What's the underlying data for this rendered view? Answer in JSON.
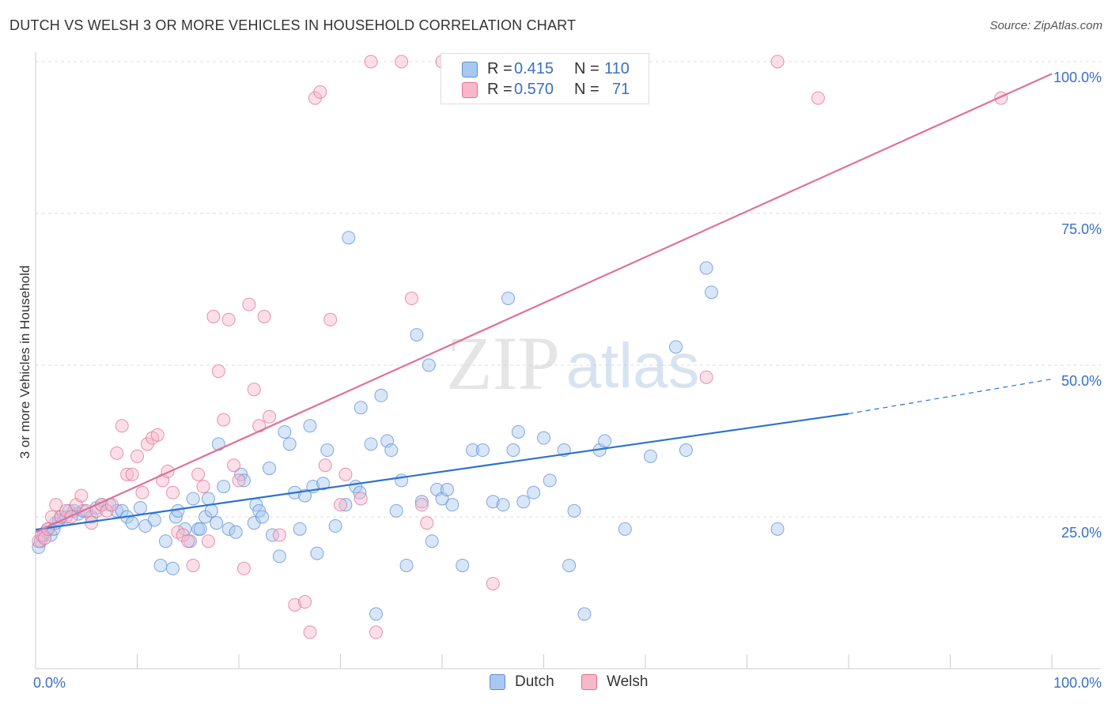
{
  "header": {
    "title": "DUTCH VS WELSH 3 OR MORE VEHICLES IN HOUSEHOLD CORRELATION CHART",
    "source": "Source: ZipAtlas.com"
  },
  "watermark": {
    "left": "ZIP",
    "right": "atlas"
  },
  "legend": {
    "rows": [
      {
        "series": "Dutch",
        "r_label": "R =",
        "r_value": "0.415",
        "n_label": "N =",
        "n_value": "110",
        "color": "#a8c8f0",
        "stroke": "#5b8fd6"
      },
      {
        "series": "Welsh",
        "r_label": "R =",
        "r_value": "0.570",
        "n_label": "N =",
        "n_value": "71",
        "color": "#f8b8cc",
        "stroke": "#e07090"
      }
    ]
  },
  "bottom_legend": [
    {
      "label": "Dutch",
      "color": "#a8c8f0",
      "stroke": "#5b8fd6"
    },
    {
      "label": "Welsh",
      "color": "#f8b8cc",
      "stroke": "#e07090"
    }
  ],
  "chart_data": {
    "type": "scatter",
    "title": "DUTCH VS WELSH 3 OR MORE VEHICLES IN HOUSEHOLD CORRELATION CHART",
    "xlabel": "",
    "ylabel": "3 or more Vehicles in Household",
    "xlim": [
      0,
      100
    ],
    "ylim": [
      0,
      100
    ],
    "x_tick_labels": [
      "0.0%",
      "100.0%"
    ],
    "y_tick_labels": [
      "25.0%",
      "50.0%",
      "75.0%",
      "100.0%"
    ],
    "y_ticks": [
      25,
      50,
      75,
      100
    ],
    "grid": true,
    "legend_position": "top-center",
    "series": [
      {
        "name": "Dutch",
        "color": "#5b8fd6",
        "fill": "#a8c8f0",
        "trend": {
          "x0": 0,
          "y0": 22.9,
          "x1": 80,
          "y1": 42.0,
          "dashed_to_x": 100,
          "dashed_to_y": 47.7
        },
        "points": [
          [
            0.3,
            20
          ],
          [
            0.5,
            21
          ],
          [
            0.8,
            22
          ],
          [
            1,
            22.5
          ],
          [
            1.2,
            23
          ],
          [
            1.5,
            22
          ],
          [
            1.8,
            23
          ],
          [
            2,
            24
          ],
          [
            2.3,
            24.5
          ],
          [
            2.5,
            25
          ],
          [
            3,
            25
          ],
          [
            3.3,
            26
          ],
          [
            3.8,
            26
          ],
          [
            4.2,
            25.5
          ],
          [
            4.7,
            26
          ],
          [
            5.5,
            25
          ],
          [
            6,
            26.5
          ],
          [
            6.5,
            27
          ],
          [
            7.3,
            27
          ],
          [
            8,
            26
          ],
          [
            8.5,
            26
          ],
          [
            9,
            25
          ],
          [
            9.5,
            24
          ],
          [
            10.3,
            26.5
          ],
          [
            10.8,
            23.5
          ],
          [
            11.7,
            24.5
          ],
          [
            12.3,
            17
          ],
          [
            12.8,
            21
          ],
          [
            13.5,
            16.5
          ],
          [
            13.8,
            25
          ],
          [
            14,
            26
          ],
          [
            14.7,
            23
          ],
          [
            15.2,
            21
          ],
          [
            15.5,
            28
          ],
          [
            16,
            23
          ],
          [
            16.2,
            23
          ],
          [
            16.7,
            25
          ],
          [
            17,
            28
          ],
          [
            17.3,
            26
          ],
          [
            17.8,
            24
          ],
          [
            18,
            37
          ],
          [
            18.5,
            30
          ],
          [
            19,
            23
          ],
          [
            19.7,
            22.5
          ],
          [
            20.2,
            32
          ],
          [
            20.5,
            31
          ],
          [
            21.5,
            24
          ],
          [
            21.7,
            27
          ],
          [
            22,
            26
          ],
          [
            22.3,
            25
          ],
          [
            23,
            33
          ],
          [
            23.3,
            22
          ],
          [
            24,
            18.5
          ],
          [
            24.5,
            39
          ],
          [
            25,
            37
          ],
          [
            25.5,
            29
          ],
          [
            26,
            23
          ],
          [
            26.5,
            28.5
          ],
          [
            27,
            40
          ],
          [
            27.3,
            30
          ],
          [
            27.7,
            19
          ],
          [
            28.3,
            30.5
          ],
          [
            28.7,
            36
          ],
          [
            29.5,
            23.5
          ],
          [
            30.5,
            27
          ],
          [
            30.8,
            71
          ],
          [
            31.5,
            30
          ],
          [
            31.9,
            29
          ],
          [
            32,
            43
          ],
          [
            33,
            37
          ],
          [
            33.5,
            9
          ],
          [
            34,
            45
          ],
          [
            34.6,
            37.5
          ],
          [
            35,
            36
          ],
          [
            35.5,
            26
          ],
          [
            36,
            31
          ],
          [
            36.5,
            17
          ],
          [
            37.5,
            55
          ],
          [
            38,
            27.5
          ],
          [
            38.7,
            50
          ],
          [
            39,
            21
          ],
          [
            39.5,
            29.5
          ],
          [
            40,
            28
          ],
          [
            40.5,
            29.5
          ],
          [
            41,
            27
          ],
          [
            42,
            17
          ],
          [
            43,
            36
          ],
          [
            44,
            36
          ],
          [
            45,
            27.5
          ],
          [
            46,
            27
          ],
          [
            46.5,
            61
          ],
          [
            47,
            36
          ],
          [
            47.5,
            39
          ],
          [
            48,
            27.5
          ],
          [
            49,
            29
          ],
          [
            50,
            38
          ],
          [
            50.6,
            31
          ],
          [
            52,
            36
          ],
          [
            52.5,
            17
          ],
          [
            53,
            26
          ],
          [
            54,
            9
          ],
          [
            55.5,
            36
          ],
          [
            56,
            37.5
          ],
          [
            58,
            23
          ],
          [
            60.5,
            35
          ],
          [
            63,
            53
          ],
          [
            64,
            36
          ],
          [
            66,
            66
          ],
          [
            66.5,
            62
          ],
          [
            73,
            23
          ]
        ]
      },
      {
        "name": "Welsh",
        "color": "#e07090",
        "fill": "#f8b8cc",
        "trend": {
          "x0": 0,
          "y0": 22.5,
          "x1": 100,
          "y1": 98.0
        },
        "points": [
          [
            0.3,
            21
          ],
          [
            0.6,
            22
          ],
          [
            0.9,
            21.5
          ],
          [
            1.2,
            23
          ],
          [
            1.6,
            25
          ],
          [
            2,
            27
          ],
          [
            2.5,
            25
          ],
          [
            3,
            26
          ],
          [
            3.5,
            25
          ],
          [
            4,
            27
          ],
          [
            4.5,
            28.5
          ],
          [
            5,
            26
          ],
          [
            5.5,
            24
          ],
          [
            6,
            26
          ],
          [
            6.5,
            27
          ],
          [
            7,
            26
          ],
          [
            7.5,
            27
          ],
          [
            8,
            35.5
          ],
          [
            8.5,
            40
          ],
          [
            9,
            32
          ],
          [
            9.5,
            32
          ],
          [
            10,
            35
          ],
          [
            10.5,
            29
          ],
          [
            11,
            37
          ],
          [
            11.5,
            38
          ],
          [
            12,
            38.5
          ],
          [
            12.5,
            31
          ],
          [
            13,
            32.5
          ],
          [
            13.5,
            29
          ],
          [
            14,
            22.5
          ],
          [
            14.5,
            22
          ],
          [
            15,
            21
          ],
          [
            15.5,
            17
          ],
          [
            16,
            32
          ],
          [
            16.5,
            30
          ],
          [
            17,
            21
          ],
          [
            17.5,
            58
          ],
          [
            18,
            49
          ],
          [
            18.5,
            41
          ],
          [
            19,
            57.5
          ],
          [
            19.5,
            33.5
          ],
          [
            20,
            31
          ],
          [
            20.5,
            16.5
          ],
          [
            21,
            60
          ],
          [
            21.5,
            46
          ],
          [
            22,
            40
          ],
          [
            22.5,
            58
          ],
          [
            23,
            41.5
          ],
          [
            24,
            22
          ],
          [
            25.5,
            10.5
          ],
          [
            26.5,
            11
          ],
          [
            27,
            6
          ],
          [
            27.5,
            94
          ],
          [
            28,
            95
          ],
          [
            28.5,
            33.5
          ],
          [
            29,
            57.5
          ],
          [
            30,
            27
          ],
          [
            30.5,
            32
          ],
          [
            32,
            28
          ],
          [
            33,
            100
          ],
          [
            33.5,
            6
          ],
          [
            36,
            100
          ],
          [
            37,
            61
          ],
          [
            38,
            27
          ],
          [
            38.5,
            24
          ],
          [
            40,
            100
          ],
          [
            45,
            14
          ],
          [
            66,
            48
          ],
          [
            73,
            100
          ],
          [
            77,
            94
          ],
          [
            95,
            94
          ]
        ]
      }
    ]
  }
}
